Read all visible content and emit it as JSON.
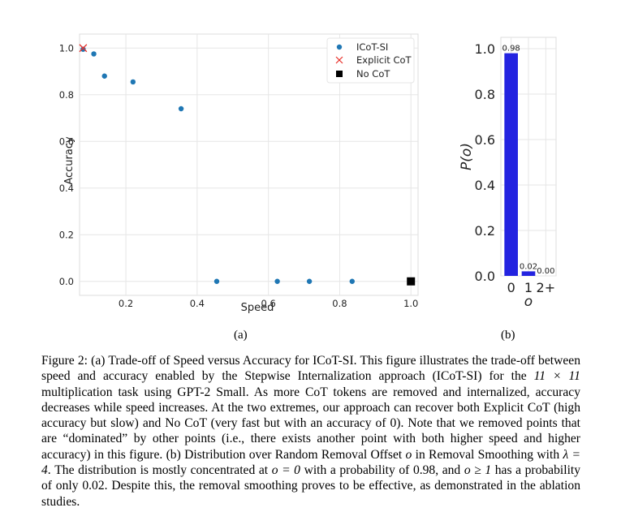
{
  "chart_data": [
    {
      "type": "scatter",
      "xlabel": "Speed",
      "ylabel": "Accuracy",
      "xlim": [
        0.07,
        1.02
      ],
      "ylim": [
        -0.06,
        1.06
      ],
      "x_ticks": [
        "0.2",
        "0.4",
        "0.6",
        "0.8",
        "1.0"
      ],
      "y_ticks": [
        "0.0",
        "0.2",
        "0.4",
        "0.6",
        "0.8",
        "1.0"
      ],
      "grid": true,
      "legend_position": "top-right",
      "series": [
        {
          "name": "ICoT-SI",
          "color": "#1f77b4",
          "marker": "circle",
          "x": [
            0.08,
            0.11,
            0.14,
            0.22,
            0.355,
            0.455,
            0.625,
            0.715,
            0.835
          ],
          "y": [
            0.995,
            0.975,
            0.88,
            0.855,
            0.74,
            0.0,
            0.0,
            0.0,
            0.0
          ]
        },
        {
          "name": "Explicit CoT",
          "color": "#e8312a",
          "marker": "x",
          "x": [
            0.08
          ],
          "y": [
            1.0
          ]
        },
        {
          "name": "No CoT",
          "color": "#000000",
          "marker": "square",
          "x": [
            1.0
          ],
          "y": [
            0.0
          ]
        }
      ]
    },
    {
      "type": "bar",
      "xlabel": "o",
      "ylabel": "P(o)",
      "categories": [
        "0",
        "1",
        "2+"
      ],
      "values": [
        0.98,
        0.02,
        0.0
      ],
      "value_labels": [
        "0.98",
        "0.02",
        "0.00"
      ],
      "ylim": [
        0,
        1.05
      ],
      "y_ticks": [
        "0.0",
        "0.2",
        "0.4",
        "0.6",
        "0.8",
        "1.0"
      ],
      "color": "#2323e0",
      "grid": true
    }
  ],
  "labels": {
    "a": "(a)",
    "b": "(b)"
  },
  "caption": {
    "figure": "Figure 2:",
    "part_a_label": "(a)",
    "part_a_title": "Trade-off of Speed versus Accuracy for ICoT-SI.",
    "part_a_body_1": "This figure illustrates the trade-off between speed and accuracy enabled by the Stepwise Internalization approach (ICoT-SI) for the",
    "dims": "11 × 11",
    "part_a_body_2": "multiplication task using GPT-2 Small. As more CoT tokens are removed and internalized, accuracy decreases while speed increases. At the two extremes, our approach can recover both Explicit CoT (high accuracy but slow) and No CoT (very fast but with an accuracy of 0). Note that we removed points that are “dominated” by other points (i.e., there exists another point with both higher speed and higher accuracy) in this figure.",
    "part_b_label": "(b)",
    "part_b_title": "Distribution over Random Removal Offset",
    "var_o": "o",
    "part_b_in": "in Removal Smoothing with",
    "lambda_eq": "λ = 4",
    "part_b_body_1": ". The distribution is mostly concentrated at",
    "o_eq_0": "o = 0",
    "part_b_body_2": "with a probability of 0.98, and",
    "o_ge_1": "o ≥ 1",
    "part_b_body_3": "has a probability of only 0.02. Despite this, the removal smoothing proves to be effective, as demonstrated in the ablation studies."
  }
}
